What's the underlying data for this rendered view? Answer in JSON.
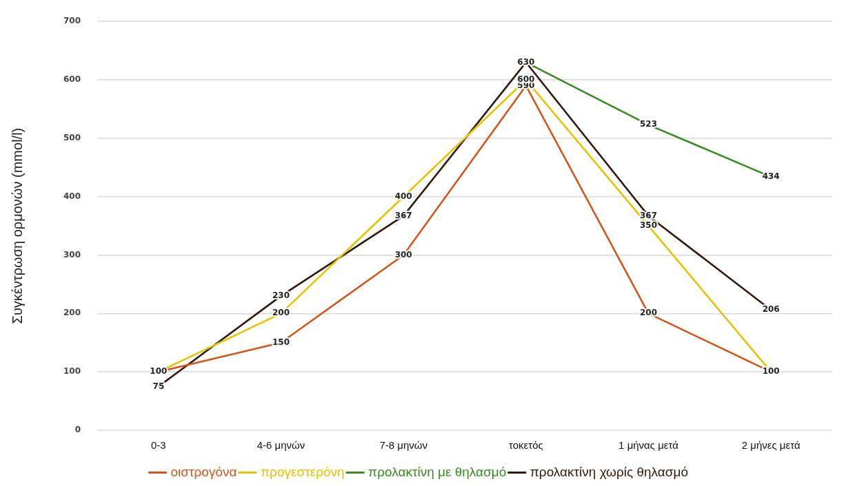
{
  "chart_data": {
    "type": "line",
    "ylabel": "Συγκέντρωση ορμονών (mmol/l)",
    "categories": [
      "0-3",
      "4-6 μηνών",
      "7-8 μηνών",
      "τοκετός",
      "1 μήνας μετά",
      "2 μήνες μετά"
    ],
    "series": [
      {
        "name": "οιστρογόνα",
        "color": "#d0561c",
        "values": [
          100,
          150,
          300,
          590,
          200,
          100
        ],
        "value_labels": [
          "100",
          "150",
          "300",
          "590",
          "200",
          "100"
        ]
      },
      {
        "name": "προγεστερόνη",
        "color": "#e6c200",
        "values": [
          100,
          200,
          400,
          600,
          350,
          100
        ],
        "value_labels": [
          null,
          "200",
          "400",
          "600",
          "350",
          null
        ]
      },
      {
        "name": "προλακτίνη με θηλασμό",
        "color": "#3a8a22",
        "values": [
          null,
          null,
          null,
          630,
          523,
          434
        ],
        "value_labels": [
          null,
          null,
          null,
          "630",
          "523",
          "434"
        ]
      },
      {
        "name": "προλακτίνη χωρίς θηλασμό",
        "color": "#2e1a10",
        "values": [
          75,
          230,
          367,
          630,
          367,
          206
        ],
        "value_labels": [
          "75",
          "230",
          "367",
          null,
          "367",
          "206"
        ]
      }
    ],
    "ylim": [
      0,
      700
    ],
    "yticks": [
      0,
      100,
      200,
      300,
      400,
      500,
      600,
      700
    ],
    "grid": "y",
    "legend": "bottom",
    "marker": "none",
    "line_style": "solid"
  }
}
